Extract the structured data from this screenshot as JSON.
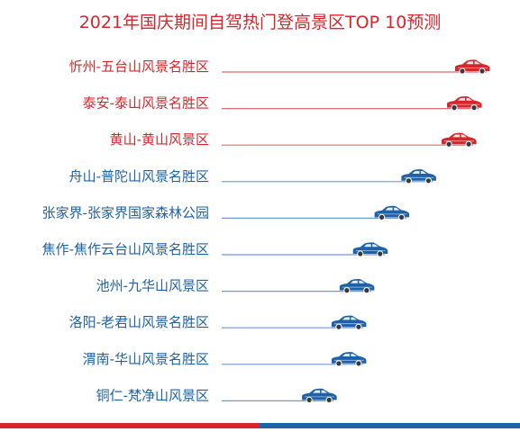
{
  "chart_data": {
    "type": "bar",
    "title": "2021年国庆期间自驾热门登高景区TOP 10预测",
    "categories": [
      "忻州-五台山风景名胜区",
      "泰安-泰山风景名胜区",
      "黄山-黄山风景区",
      "舟山-普陀山风景名胜区",
      "张家界-张家界国家森林公园",
      "焦作-焦作云台山风景名胜区",
      "池州-九华山风景区",
      "洛阳-老君山风景名胜区",
      "渭南-华山风景名胜区",
      "铜仁-梵净山风景区"
    ],
    "values": [
      100,
      97,
      95,
      80,
      70,
      62,
      57,
      54,
      54,
      43
    ],
    "value_scale": "relative (top = 100); no axis or values are printed",
    "highlight_count": 3,
    "colors": {
      "title": "#d6262c",
      "highlight": "#d6262c",
      "normal": "#1d61a8",
      "highlight_line": "#e06a6e",
      "normal_line": "#6f9bd1"
    },
    "marker_icon": "car-icon",
    "bottom_rule_colors": [
      "#d6262c",
      "#1d61a8"
    ]
  }
}
